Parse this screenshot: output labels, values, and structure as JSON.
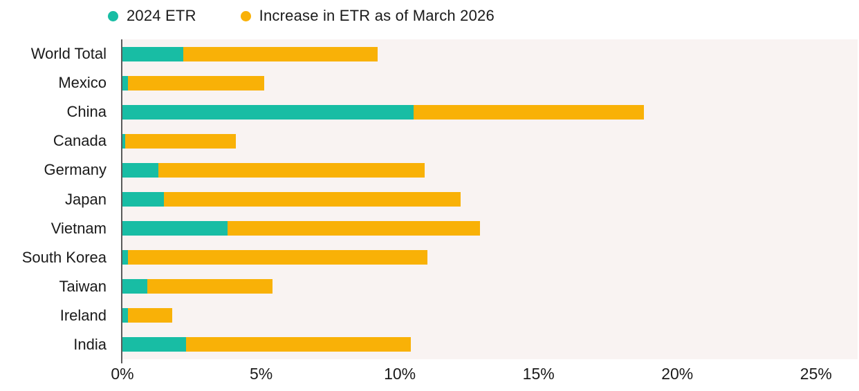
{
  "legend": {
    "items": [
      {
        "label": "2024 ETR",
        "color": "#18bda4"
      },
      {
        "label": "Increase in ETR as of March 2026",
        "color": "#f9b107"
      }
    ]
  },
  "chart_data": {
    "type": "bar",
    "orientation": "horizontal",
    "stacked": true,
    "title": "",
    "xlabel": "",
    "ylabel": "",
    "categories": [
      "World Total",
      "Mexico",
      "China",
      "Canada",
      "Germany",
      "Japan",
      "Vietnam",
      "South Korea",
      "Taiwan",
      "Ireland",
      "India"
    ],
    "series": [
      {
        "name": "2024 ETR",
        "color": "#18bda4",
        "values": [
          2.2,
          0.2,
          10.5,
          0.1,
          1.3,
          1.5,
          3.8,
          0.2,
          0.9,
          0.2,
          2.3
        ]
      },
      {
        "name": "Increase in ETR as of March 2026",
        "color": "#f9b107",
        "values": [
          7.0,
          4.9,
          8.3,
          4.0,
          9.6,
          10.7,
          9.1,
          10.8,
          4.5,
          1.6,
          8.1
        ]
      }
    ],
    "stacked_totals": [
      9.2,
      5.1,
      18.8,
      4.1,
      10.9,
      12.2,
      12.9,
      11.0,
      5.4,
      1.8,
      10.4
    ],
    "x_ticks": [
      "0%",
      "5%",
      "10%",
      "15%",
      "20%",
      "25%"
    ],
    "x_tick_values": [
      0,
      5,
      10,
      15,
      20,
      25
    ],
    "xlim": [
      0,
      26.5
    ],
    "grid": false,
    "legend_position": "top",
    "plot_background": "#f9f3f2",
    "axis_line_color": "#5a5a5a"
  }
}
